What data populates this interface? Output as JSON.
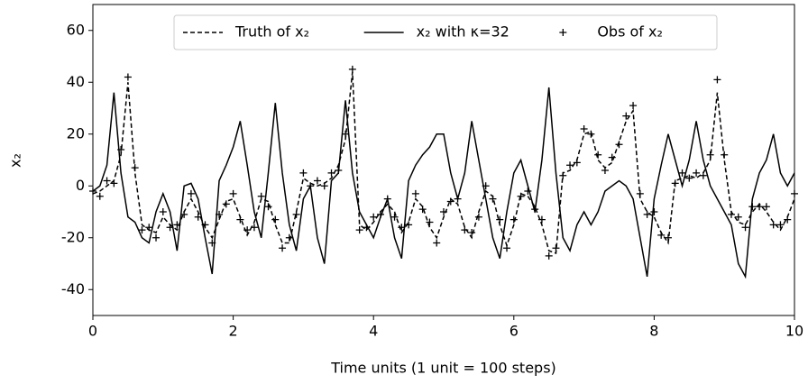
{
  "chart_data": {
    "type": "line",
    "xlabel": "Time units (1 unit = 100 steps)",
    "ylabel": "x₂",
    "xlim": [
      0,
      10
    ],
    "ylim": [
      -50,
      70
    ],
    "xticks": [
      0,
      2,
      4,
      6,
      8,
      10
    ],
    "yticks": [
      -40,
      -20,
      0,
      20,
      40,
      60
    ],
    "legend": "upper center",
    "x": [
      0,
      0.1,
      0.2,
      0.3,
      0.4,
      0.5,
      0.6,
      0.7,
      0.8,
      0.9,
      1,
      1.1,
      1.2,
      1.3,
      1.4,
      1.5,
      1.6,
      1.7,
      1.8,
      1.9,
      2,
      2.1,
      2.2,
      2.3,
      2.4,
      2.5,
      2.6,
      2.7,
      2.8,
      2.9,
      3,
      3.1,
      3.2,
      3.3,
      3.4,
      3.5,
      3.6,
      3.7,
      3.8,
      3.9,
      4,
      4.1,
      4.2,
      4.3,
      4.4,
      4.5,
      4.6,
      4.7,
      4.8,
      4.9,
      5,
      5.1,
      5.2,
      5.3,
      5.4,
      5.5,
      5.6,
      5.7,
      5.8,
      5.9,
      6,
      6.1,
      6.2,
      6.3,
      6.4,
      6.5,
      6.6,
      6.7,
      6.8,
      6.9,
      7,
      7.1,
      7.2,
      7.3,
      7.4,
      7.5,
      7.6,
      7.7,
      7.8,
      7.9,
      8,
      8.1,
      8.2,
      8.3,
      8.4,
      8.5,
      8.6,
      8.7,
      8.8,
      8.9,
      9,
      9.1,
      9.2,
      9.3,
      9.4,
      9.5,
      9.6,
      9.7,
      9.8,
      9.9,
      10
    ],
    "series": [
      {
        "name": "Truth of x₂",
        "color": "#000000",
        "linestyle": "dashed",
        "values": [
          -3,
          -2,
          0,
          2,
          12,
          40,
          5,
          -15,
          -17,
          -18,
          -12,
          -15,
          -17,
          -10,
          -5,
          -10,
          -16,
          -20,
          -13,
          -6,
          -5,
          -12,
          -19,
          -14,
          -5,
          -6,
          -15,
          -22,
          -22,
          -10,
          3,
          1,
          0,
          1,
          3,
          8,
          18,
          44,
          -15,
          -17,
          -14,
          -10,
          -7,
          -10,
          -18,
          -14,
          -5,
          -8,
          -16,
          -20,
          -12,
          -5,
          -7,
          -16,
          -20,
          -10,
          -2,
          -4,
          -15,
          -23,
          -15,
          -3,
          -4,
          -8,
          -15,
          -25,
          -26,
          5,
          6,
          10,
          20,
          21,
          10,
          7,
          9,
          17,
          25,
          29,
          -5,
          -10,
          -12,
          -18,
          -22,
          2,
          3,
          4,
          3,
          5,
          10,
          36,
          10,
          -10,
          -14,
          -15,
          -10,
          -7,
          -10,
          -14,
          -17,
          -12,
          -5
        ]
      },
      {
        "name": "x₂ with κ=32",
        "color": "#000000",
        "linestyle": "solid",
        "values": [
          -2,
          0,
          8,
          36,
          5,
          -12,
          -14,
          -20,
          -22,
          -10,
          -3,
          -10,
          -25,
          0,
          1,
          -5,
          -20,
          -34,
          2,
          8,
          15,
          25,
          8,
          -10,
          -20,
          5,
          32,
          5,
          -15,
          -25,
          -5,
          0,
          -20,
          -30,
          2,
          5,
          33,
          5,
          -10,
          -15,
          -20,
          -12,
          -5,
          -20,
          -28,
          2,
          8,
          12,
          15,
          20,
          20,
          5,
          -5,
          5,
          25,
          10,
          -5,
          -20,
          -28,
          -10,
          5,
          10,
          0,
          -10,
          10,
          38,
          5,
          -20,
          -25,
          -15,
          -10,
          -15,
          -10,
          -2,
          0,
          2,
          0,
          -5,
          -20,
          -35,
          -5,
          8,
          20,
          10,
          0,
          10,
          25,
          10,
          0,
          -5,
          -10,
          -15,
          -30,
          -35,
          -5,
          5,
          10,
          20,
          5,
          0,
          5
        ]
      },
      {
        "name": "Obs of x₂",
        "color": "#000000",
        "marker": "+",
        "values": [
          -2,
          -4,
          2,
          1,
          14,
          42,
          7,
          -17,
          -16,
          -20,
          -10,
          -16,
          -15,
          -11,
          -3,
          -12,
          -15,
          -22,
          -11,
          -7,
          -3,
          -13,
          -17,
          -16,
          -4,
          -8,
          -13,
          -24,
          -20,
          -11,
          5,
          0,
          2,
          0,
          5,
          6,
          20,
          45,
          -17,
          -16,
          -12,
          -11,
          -5,
          -12,
          -16,
          -15,
          -3,
          -9,
          -14,
          -22,
          -10,
          -6,
          -5,
          -17,
          -18,
          -12,
          0,
          -5,
          -13,
          -24,
          -13,
          -4,
          -2,
          -9,
          -13,
          -27,
          -24,
          4,
          8,
          9,
          22,
          20,
          12,
          6,
          11,
          16,
          27,
          31,
          -3,
          -11,
          -10,
          -19,
          -20,
          1,
          5,
          3,
          5,
          4,
          12,
          41,
          12,
          -11,
          -12,
          -16,
          -8,
          -8,
          -8,
          -15,
          -15,
          -13,
          -3
        ]
      }
    ]
  }
}
